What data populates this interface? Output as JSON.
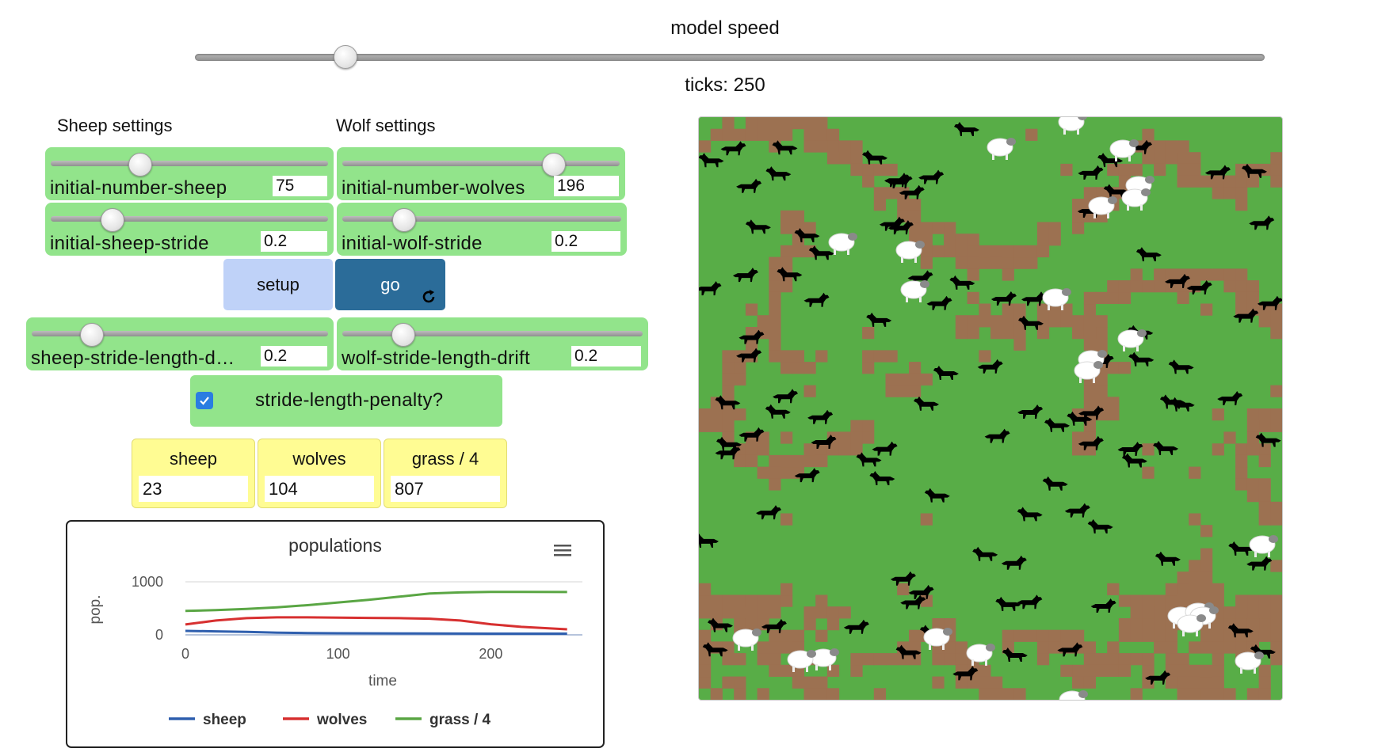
{
  "speed": {
    "label": "model speed",
    "value": 0.14
  },
  "ticks": {
    "label": "ticks: 250"
  },
  "sheep_settings": {
    "heading": "Sheep settings"
  },
  "wolf_settings": {
    "heading": "Wolf settings"
  },
  "sliders": {
    "initial_number_sheep": {
      "label": "initial-number-sheep",
      "value": "75",
      "fraction": 0.32
    },
    "initial_number_wolves": {
      "label": "initial-number-wolves",
      "value": "196",
      "fraction": 0.76
    },
    "initial_sheep_stride": {
      "label": "initial-sheep-stride",
      "value": "0.2",
      "fraction": 0.22
    },
    "initial_wolf_stride": {
      "label": "initial-wolf-stride",
      "value": "0.2",
      "fraction": 0.22
    },
    "sheep_stride_length_drift": {
      "label": "sheep-stride-length-d…",
      "value": "0.2",
      "fraction": 0.2
    },
    "wolf_stride_length_drift": {
      "label": "wolf-stride-length-drift",
      "value": "0.2",
      "fraction": 0.2
    }
  },
  "buttons": {
    "setup": "setup",
    "go": "go"
  },
  "switch": {
    "label": "stride-length-penalty?",
    "checked": true
  },
  "monitors": {
    "sheep": {
      "label": "sheep",
      "value": "23"
    },
    "wolves": {
      "label": "wolves",
      "value": "104"
    },
    "grass": {
      "label": "grass / 4",
      "value": "807"
    }
  },
  "colors": {
    "slider_bg": "#92e48b",
    "go_button": "#2b6c99",
    "setup_button": "#bfd2f8",
    "monitor_bg": "#fffc93",
    "grass": "#58ad47",
    "dirt": "#9c7151"
  },
  "chart_data": {
    "type": "line",
    "title": "populations",
    "xlabel": "time",
    "ylabel": "pop.",
    "xlim": [
      0,
      260
    ],
    "ylim": [
      0,
      1000
    ],
    "xticks": [
      "0",
      "100",
      "200"
    ],
    "yticks": [
      "0",
      "1000"
    ],
    "legend_position": "bottom",
    "series": [
      {
        "name": "sheep",
        "color": "#2f5fae",
        "x": [
          0,
          20,
          40,
          60,
          80,
          100,
          150,
          200,
          250
        ],
        "y": [
          75,
          65,
          55,
          40,
          35,
          30,
          25,
          23,
          23
        ]
      },
      {
        "name": "wolves",
        "color": "#d73030",
        "x": [
          0,
          20,
          40,
          60,
          80,
          100,
          120,
          140,
          160,
          180,
          200,
          220,
          250
        ],
        "y": [
          196,
          270,
          315,
          330,
          330,
          325,
          320,
          315,
          305,
          270,
          200,
          150,
          104
        ]
      },
      {
        "name": "grass / 4",
        "color": "#5aa644",
        "x": [
          0,
          20,
          40,
          60,
          80,
          100,
          120,
          140,
          160,
          180,
          200,
          220,
          250
        ],
        "y": [
          450,
          465,
          490,
          520,
          560,
          610,
          660,
          720,
          780,
          800,
          810,
          810,
          807
        ]
      }
    ]
  },
  "world": {
    "sheep_count": "23",
    "wolf_count": "104"
  }
}
